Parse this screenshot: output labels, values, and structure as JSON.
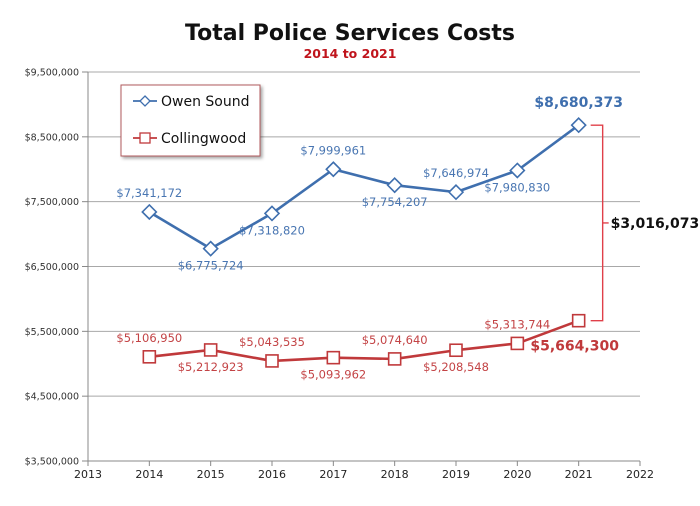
{
  "chart_data": {
    "type": "line",
    "title": "Total Police Services Costs",
    "subtitle": "2014 to 2021",
    "xlabel": "",
    "ylabel": "",
    "xlim": [
      2013,
      2022
    ],
    "ylim": [
      3500000,
      9500000
    ],
    "grid": true,
    "x_ticks": [
      "2013",
      "2014",
      "2015",
      "2016",
      "2017",
      "2018",
      "2019",
      "2020",
      "2021",
      "2022"
    ],
    "y_ticks": [
      3500000,
      4500000,
      5500000,
      6500000,
      7500000,
      8500000,
      9500000
    ],
    "y_tick_labels": [
      "$3,500,000",
      "$4,500,000",
      "$5,500,000",
      "$6,500,000",
      "$7,500,000",
      "$8,500,000",
      "$9,500,000"
    ],
    "legend_position": "top-left",
    "x": [
      2014,
      2015,
      2016,
      2017,
      2018,
      2019,
      2020,
      2021
    ],
    "series": [
      {
        "name": "Owen Sound",
        "color": "#3f6fae",
        "marker": "diamond",
        "values": [
          7341172,
          6775724,
          7318820,
          7999961,
          7754207,
          7646974,
          7980830,
          8680373
        ],
        "labels": [
          "$7,341,172",
          "$6,775,724",
          "$7,318,820",
          "$7,999,961",
          "$7,754,207",
          "$7,646,974",
          "$7,980,830",
          "$8,680,373"
        ],
        "label_side": [
          "above",
          "below",
          "below",
          "above",
          "below",
          "above",
          "below",
          "above"
        ]
      },
      {
        "name": "Collingwood",
        "color": "#c0393b",
        "marker": "square",
        "values": [
          5106950,
          5212923,
          5043535,
          5093962,
          5074640,
          5208548,
          5313744,
          5664300
        ],
        "labels": [
          "$5,106,950",
          "$5,212,923",
          "$5,043,535",
          "$5,093,962",
          "$5,074,640",
          "$5,208,548",
          "$5,313,744",
          "$5,664,300"
        ],
        "label_side": [
          "above",
          "below",
          "above",
          "below",
          "above",
          "below",
          "above",
          "below"
        ]
      }
    ],
    "annotation": {
      "text": "$3,016,073",
      "description": "Difference between Owen Sound and Collingwood in 2021",
      "color": "#e0404a"
    }
  }
}
